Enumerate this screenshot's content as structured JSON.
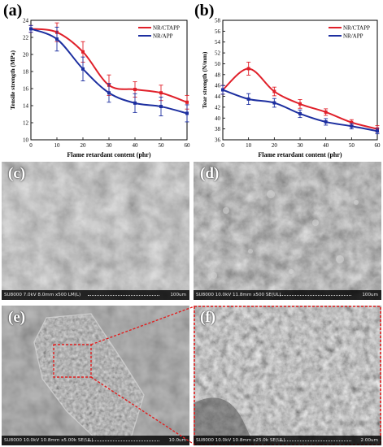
{
  "panels": {
    "a": "(a)",
    "b": "(b)",
    "c": "(c)",
    "d": "(d)",
    "e": "(e)",
    "f": "(f)"
  },
  "colors": {
    "ctapp": "#e0202a",
    "app": "#1d2fa0",
    "box": "#e02020"
  },
  "chart_data": [
    {
      "type": "line",
      "xlabel": "Flame retardant content (phr)",
      "ylabel": "Tensile strength (MPa)",
      "x": [
        0,
        10,
        20,
        30,
        40,
        50,
        60
      ],
      "xlim": [
        0,
        60
      ],
      "ylim": [
        10,
        24
      ],
      "xticks": [
        "0",
        "10",
        "20",
        "30",
        "40",
        "50",
        "60"
      ],
      "yticks": [
        "10",
        "12",
        "14",
        "16",
        "18",
        "20",
        "22",
        "24"
      ],
      "legend": "top-right",
      "series": [
        {
          "name": "NR/CTAPP",
          "values": [
            23.0,
            22.6,
            20.3,
            16.4,
            15.9,
            15.5,
            14.4
          ],
          "err": [
            0.4,
            1.1,
            1.2,
            1.2,
            0.9,
            0.9,
            0.8
          ]
        },
        {
          "name": "NR/APP",
          "values": [
            23.0,
            21.8,
            18.3,
            15.5,
            14.3,
            13.9,
            13.1
          ],
          "err": [
            0.4,
            1.4,
            1.4,
            1.1,
            1.1,
            1.1,
            1.0
          ]
        }
      ]
    },
    {
      "type": "line",
      "xlabel": "Flame retardant content (phr)",
      "ylabel": "Tear strength (N/mm)",
      "x": [
        0,
        10,
        20,
        30,
        40,
        50,
        60
      ],
      "xlim": [
        0,
        60
      ],
      "ylim": [
        36,
        58
      ],
      "xticks": [
        "0",
        "10",
        "20",
        "30",
        "40",
        "50",
        "60"
      ],
      "yticks": [
        "36",
        "38",
        "40",
        "42",
        "44",
        "46",
        "48",
        "50",
        "52",
        "54",
        "56",
        "58"
      ],
      "legend": "top-right",
      "series": [
        {
          "name": "NR/CTAPP",
          "values": [
            45.2,
            49.1,
            44.9,
            42.6,
            41.1,
            39.2,
            38.0
          ],
          "err": [
            0.8,
            1.2,
            0.8,
            0.8,
            0.6,
            0.5,
            0.6
          ]
        },
        {
          "name": "NR/APP",
          "values": [
            45.2,
            43.5,
            42.8,
            40.8,
            39.3,
            38.5,
            37.6
          ],
          "err": [
            0.8,
            1.0,
            0.8,
            0.7,
            0.6,
            0.5,
            0.5
          ]
        }
      ]
    }
  ],
  "sem": {
    "c": {
      "info": "SU8000 7.0kV 8.0mm x500 LM(L)",
      "scale": "100um"
    },
    "d": {
      "info": "SU8000 10.0kV 11.8mm x500 SE(UL)",
      "scale": "100um"
    },
    "e": {
      "info": "SU8000 10.0kV 10.8mm x5.00k SE(UL)",
      "scale": "10.0um"
    },
    "f": {
      "info": "SU8000 10.0kV 10.8mm x25.0k SE(UL)",
      "scale": "2.00um"
    }
  }
}
